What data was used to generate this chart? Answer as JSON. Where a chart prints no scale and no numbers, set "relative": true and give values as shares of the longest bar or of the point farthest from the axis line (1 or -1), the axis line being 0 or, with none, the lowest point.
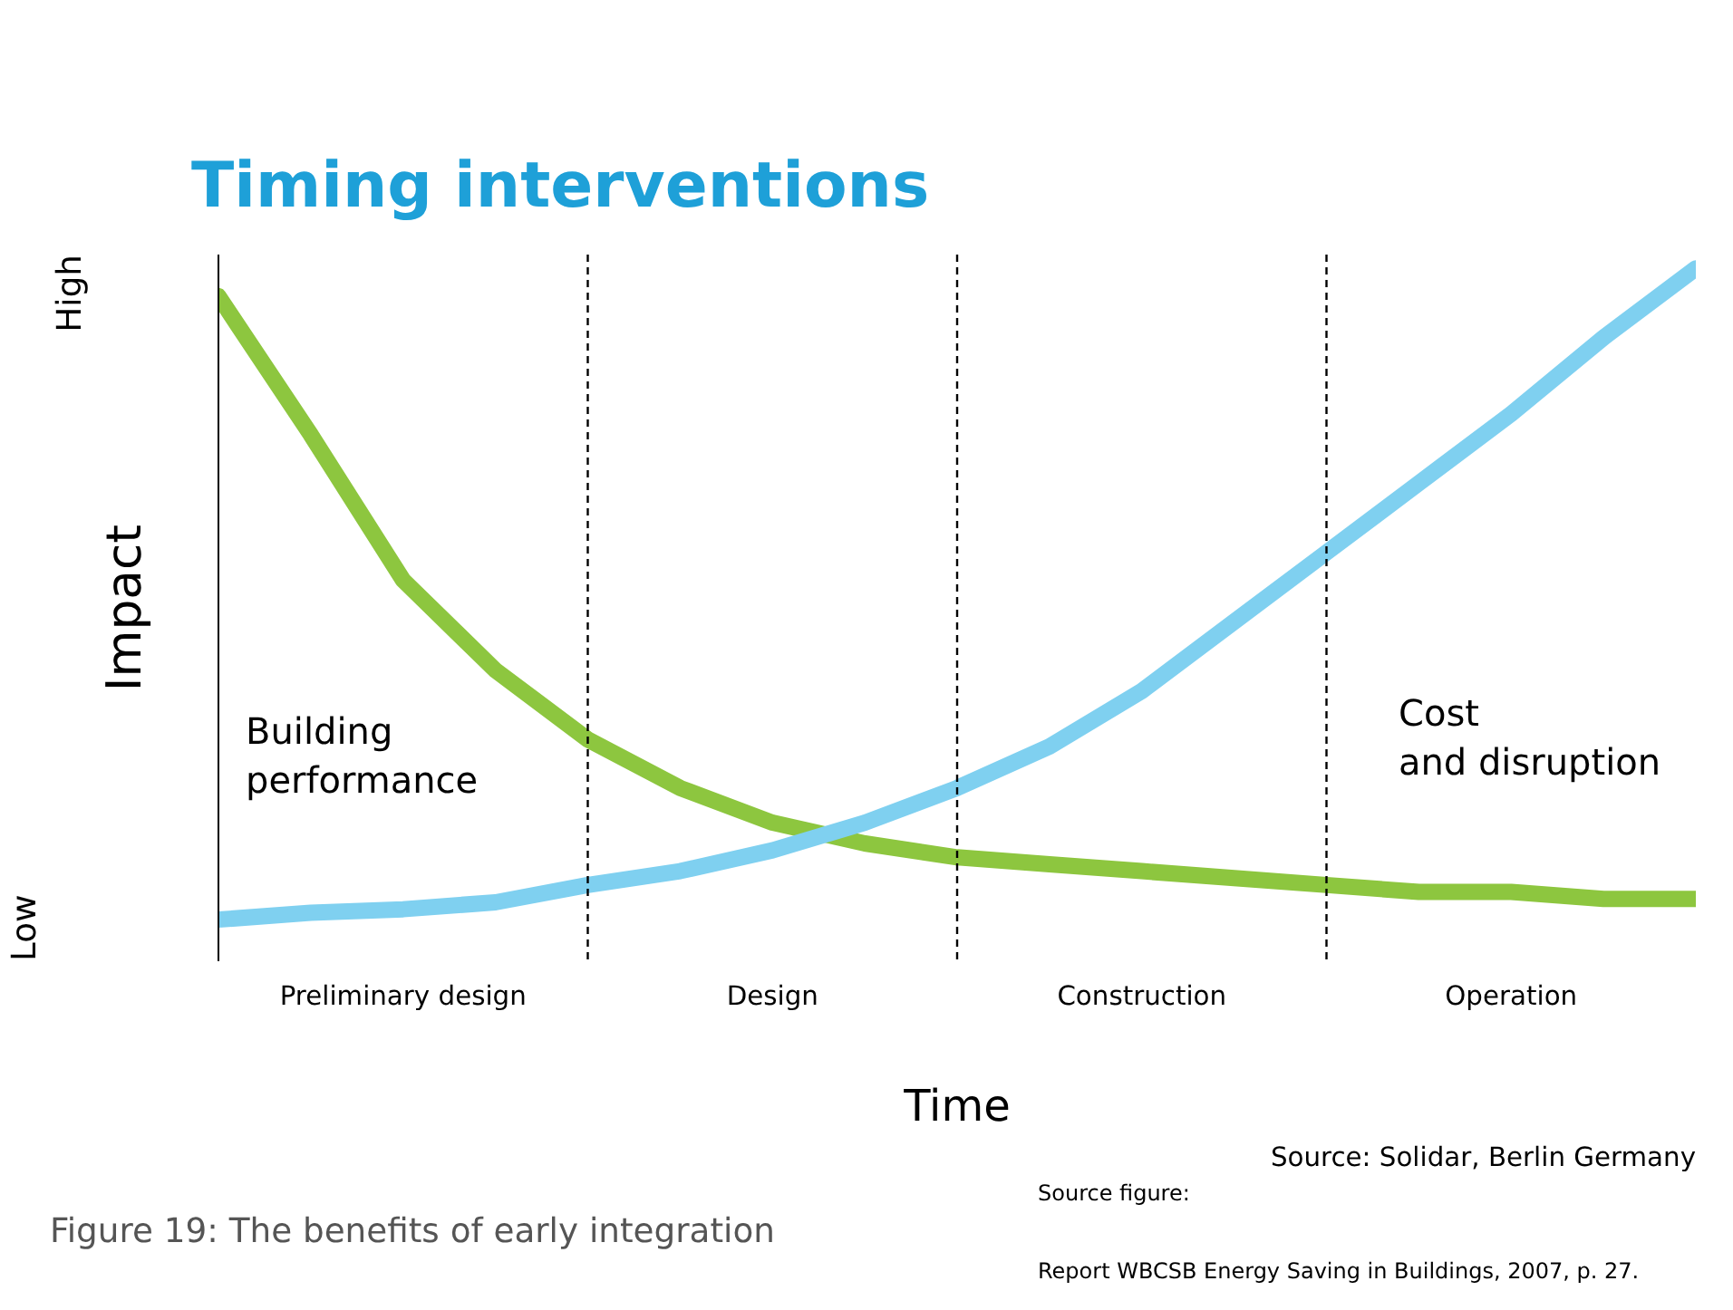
{
  "chart_data": {
    "type": "line",
    "title": "Timing interventions",
    "xlabel": "Time",
    "ylabel": "Impact",
    "relative": true,
    "grid": "x",
    "line_style": "solid",
    "marker": "none",
    "categories": [
      null,
      null,
      "Preliminary design",
      null,
      null,
      null,
      "Design",
      null,
      null,
      null,
      "Construction",
      null,
      null,
      null,
      "Operation",
      null,
      null
    ],
    "series": [
      {
        "color": "#8dc63f",
        "values": [
          0.96,
          0.76,
          0.55,
          0.42,
          0.32,
          0.25,
          0.2,
          0.17,
          0.15,
          0.14,
          0.13,
          0.12,
          0.11,
          0.1,
          0.1,
          0.09,
          0.09
        ]
      },
      {
        "color": "#7fd0f0",
        "values": [
          0.06,
          0.07,
          0.075,
          0.085,
          0.11,
          0.13,
          0.16,
          0.2,
          0.25,
          0.31,
          0.39,
          0.49,
          0.59,
          0.69,
          0.79,
          0.9,
          1.0
        ]
      }
    ],
    "annotations": [
      "High",
      "Low",
      "Building performance",
      "Cost and disruption",
      "Source: Solidar, Berlin Germany",
      "Figure 19: The benefits of early integration",
      "Source figure:",
      "Report WBCSB Energy Saving in Buildings, 2007, p. 27."
    ]
  }
}
